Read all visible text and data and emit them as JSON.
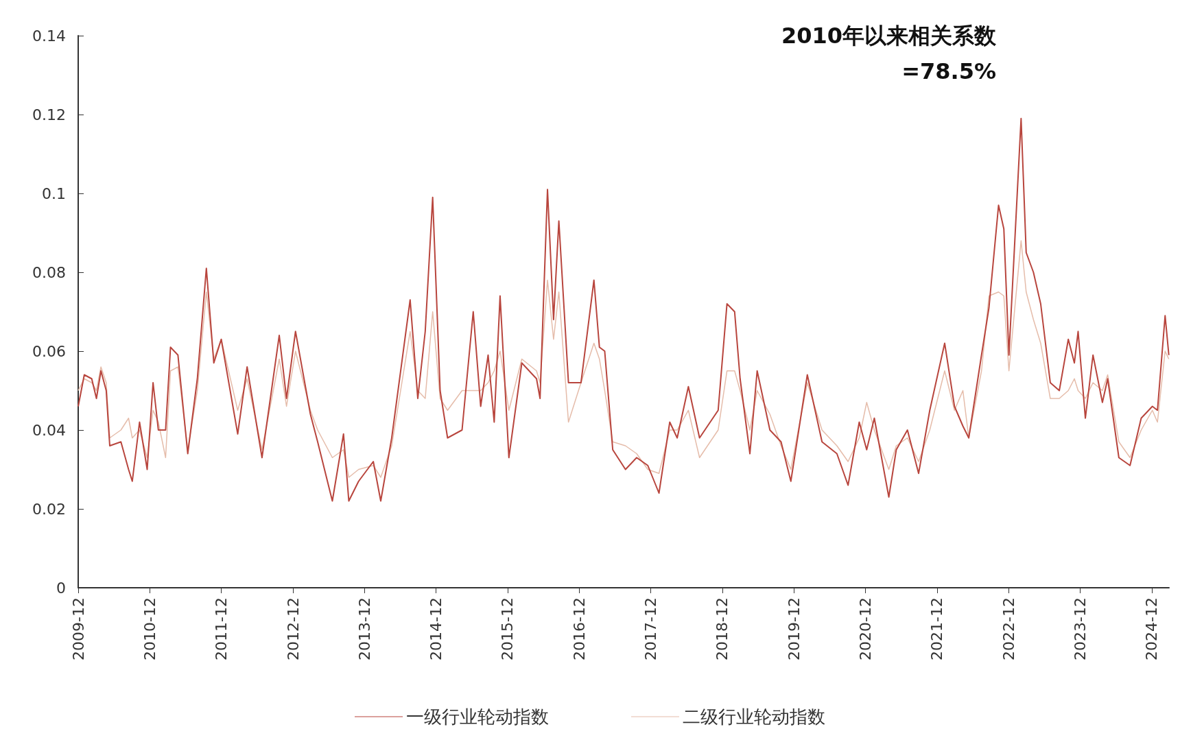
{
  "chart_data": {
    "type": "line",
    "annotations": [
      "2010年以来相关系数",
      "=78.5%"
    ],
    "x": [
      "2009-12-01",
      "2010-01-01",
      "2010-02-08",
      "2010-03-04",
      "2010-03-27",
      "2010-04-23",
      "2010-05-11",
      "2010-07-07",
      "2010-08-15",
      "2010-09-03",
      "2010-10-10",
      "2010-11-18",
      "2010-12-18",
      "2011-01-14",
      "2011-02-20",
      "2011-03-17",
      "2011-04-24",
      "2011-06-13",
      "2011-08-01",
      "2011-09-16",
      "2011-10-24",
      "2011-12-01",
      "2012-02-23",
      "2012-04-11",
      "2012-06-26",
      "2012-09-22",
      "2012-10-29",
      "2012-12-14",
      "2013-02-28",
      "2013-04-06",
      "2013-06-20",
      "2013-08-16",
      "2013-09-12",
      "2013-11-01",
      "2014-01-15",
      "2014-02-22",
      "2014-04-19",
      "2014-07-22",
      "2014-08-30",
      "2014-10-07",
      "2014-11-14",
      "2014-12-22",
      "2015-01-29",
      "2015-04-13",
      "2015-06-09",
      "2015-07-17",
      "2015-08-24",
      "2015-09-24",
      "2015-10-24",
      "2015-12-08",
      "2016-02-12",
      "2016-04-27",
      "2016-05-15",
      "2016-06-22",
      "2016-07-23",
      "2016-08-19",
      "2016-10-07",
      "2016-12-10",
      "2017-02-14",
      "2017-03-14",
      "2017-04-10",
      "2017-05-21",
      "2017-07-25",
      "2017-09-20",
      "2017-11-16",
      "2018-01-12",
      "2018-03-08",
      "2018-04-15",
      "2018-06-11",
      "2018-08-07",
      "2018-11-10",
      "2018-12-25",
      "2019-02-02",
      "2019-03-02",
      "2019-04-21",
      "2019-05-28",
      "2019-08-01",
      "2019-09-27",
      "2019-11-16",
      "2020-02-08",
      "2020-04-23",
      "2020-07-08",
      "2020-09-03",
      "2020-10-30",
      "2020-12-07",
      "2021-01-15",
      "2021-03-30",
      "2021-05-07",
      "2021-07-03",
      "2021-08-29",
      "2021-10-25",
      "2022-01-09",
      "2022-02-28",
      "2022-04-12",
      "2022-05-12",
      "2022-07-16",
      "2022-08-23",
      "2022-10-11",
      "2022-11-07",
      "2022-12-03",
      "2023-02-03",
      "2023-03-01",
      "2023-04-07",
      "2023-05-14",
      "2023-07-02",
      "2023-08-17",
      "2023-10-02",
      "2023-11-02",
      "2023-11-21",
      "2023-12-28",
      "2024-02-05",
      "2024-03-24",
      "2024-04-20",
      "2024-06-16",
      "2024-08-12",
      "2024-10-08",
      "2024-12-04",
      "2024-12-30",
      "2025-02-07",
      "2025-02-26"
    ],
    "series": [
      {
        "name": "一级行业轮动指数",
        "color": "#b8453d",
        "values": [
          0.046,
          0.054,
          0.053,
          0.048,
          0.055,
          0.05,
          0.036,
          0.037,
          0.03,
          0.027,
          0.042,
          0.03,
          0.052,
          0.04,
          0.04,
          0.061,
          0.059,
          0.034,
          0.053,
          0.081,
          0.057,
          0.063,
          0.039,
          0.056,
          0.033,
          0.064,
          0.048,
          0.065,
          0.044,
          0.037,
          0.022,
          0.039,
          0.022,
          0.027,
          0.032,
          0.022,
          0.038,
          0.073,
          0.048,
          0.065,
          0.099,
          0.05,
          0.038,
          0.04,
          0.07,
          0.046,
          0.059,
          0.042,
          0.074,
          0.033,
          0.057,
          0.053,
          0.048,
          0.101,
          0.068,
          0.093,
          0.052,
          0.052,
          0.078,
          0.061,
          0.06,
          0.035,
          0.03,
          0.033,
          0.031,
          0.024,
          0.042,
          0.038,
          0.051,
          0.038,
          0.045,
          0.072,
          0.07,
          0.053,
          0.034,
          0.055,
          0.04,
          0.037,
          0.027,
          0.054,
          0.037,
          0.034,
          0.026,
          0.042,
          0.035,
          0.043,
          0.023,
          0.035,
          0.04,
          0.029,
          0.045,
          0.062,
          0.046,
          0.041,
          0.038,
          0.059,
          0.071,
          0.097,
          0.091,
          0.059,
          0.119,
          0.085,
          0.08,
          0.072,
          0.052,
          0.05,
          0.063,
          0.057,
          0.065,
          0.043,
          0.059,
          0.047,
          0.053,
          0.033,
          0.031,
          0.043,
          0.046,
          0.045,
          0.069,
          0.059
        ]
      },
      {
        "name": "二级行业轮动指数",
        "color": "#e5bcaa",
        "values": [
          0.05,
          0.053,
          0.052,
          0.05,
          0.056,
          0.052,
          0.038,
          0.04,
          0.043,
          0.038,
          0.04,
          0.033,
          0.045,
          0.042,
          0.033,
          0.055,
          0.056,
          0.035,
          0.05,
          0.075,
          0.058,
          0.063,
          0.045,
          0.053,
          0.035,
          0.058,
          0.046,
          0.06,
          0.045,
          0.04,
          0.033,
          0.035,
          0.028,
          0.03,
          0.031,
          0.028,
          0.036,
          0.065,
          0.05,
          0.048,
          0.07,
          0.048,
          0.045,
          0.05,
          0.05,
          0.05,
          0.052,
          0.055,
          0.06,
          0.045,
          0.058,
          0.055,
          0.052,
          0.078,
          0.063,
          0.075,
          0.042,
          0.052,
          0.062,
          0.058,
          0.05,
          0.037,
          0.036,
          0.034,
          0.03,
          0.029,
          0.04,
          0.04,
          0.045,
          0.033,
          0.04,
          0.055,
          0.055,
          0.05,
          0.04,
          0.05,
          0.044,
          0.036,
          0.03,
          0.052,
          0.04,
          0.036,
          0.032,
          0.038,
          0.047,
          0.04,
          0.03,
          0.036,
          0.038,
          0.032,
          0.04,
          0.055,
          0.045,
          0.05,
          0.038,
          0.055,
          0.074,
          0.075,
          0.074,
          0.055,
          0.088,
          0.075,
          0.068,
          0.062,
          0.048,
          0.048,
          0.05,
          0.053,
          0.05,
          0.048,
          0.052,
          0.05,
          0.054,
          0.037,
          0.033,
          0.04,
          0.045,
          0.042,
          0.06,
          0.058
        ]
      }
    ],
    "xlim": [
      "2009-12-01",
      "2025-02-27"
    ],
    "xticks": [
      "2009-12",
      "2010-12",
      "2011-12",
      "2012-12",
      "2013-12",
      "2014-12",
      "2015-12",
      "2016-12",
      "2017-12",
      "2018-12",
      "2019-12",
      "2020-12",
      "2021-12",
      "2022-12",
      "2023-12",
      "2024-12"
    ],
    "ylim": [
      0,
      0.14
    ],
    "yticks": [
      0,
      0.02,
      0.04,
      0.06,
      0.08,
      0.1,
      0.12,
      0.14
    ],
    "legend": "bottom"
  }
}
